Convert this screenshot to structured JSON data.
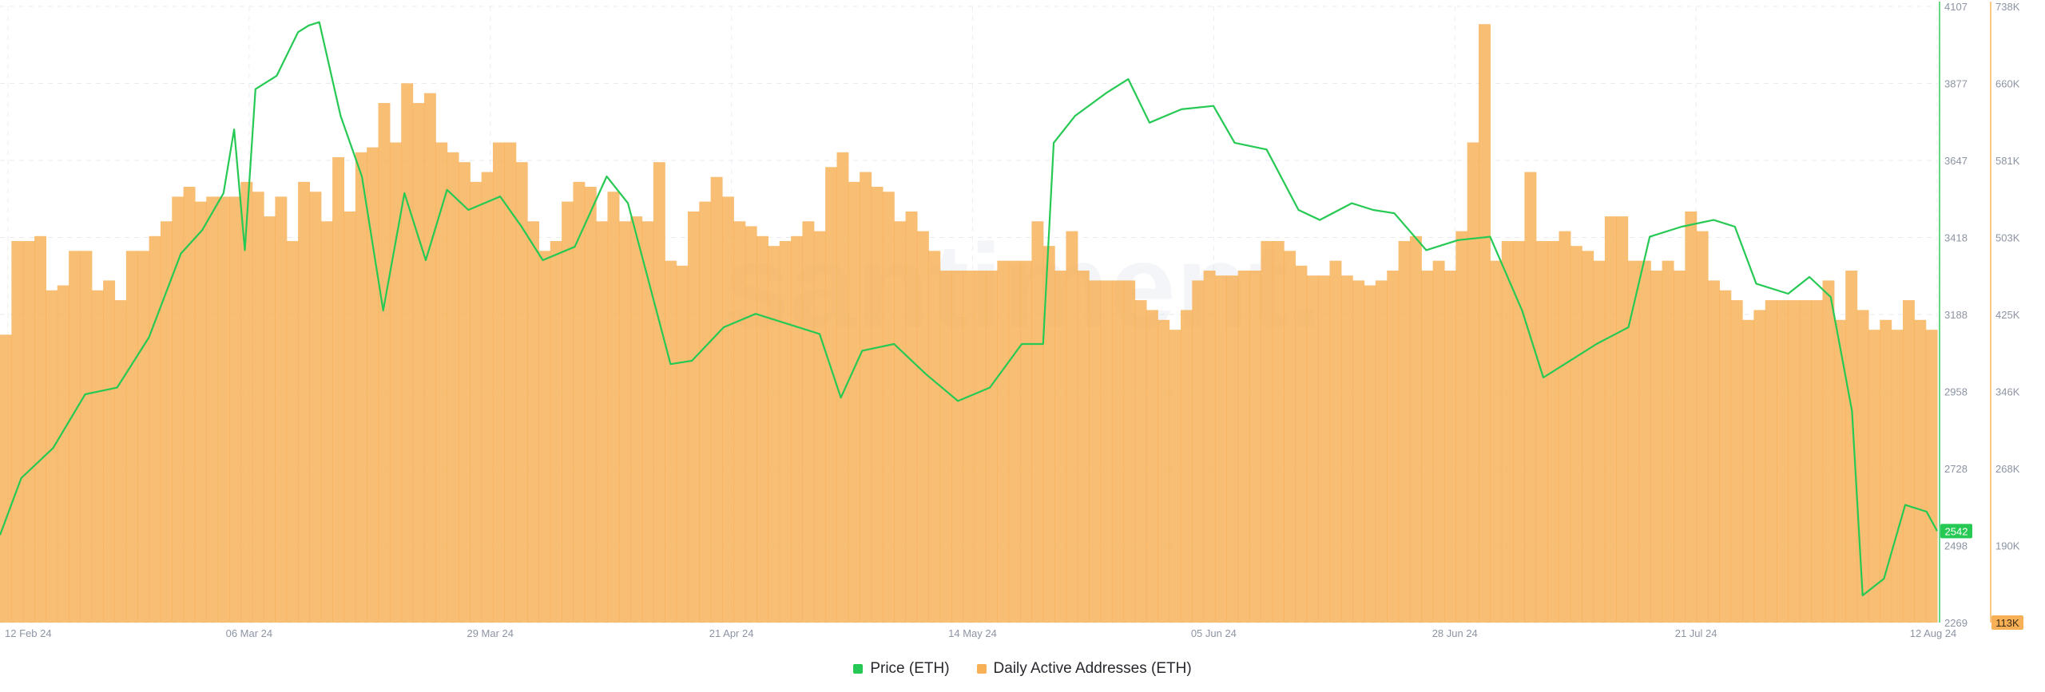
{
  "chart_data": {
    "type": "bar+line",
    "title": "",
    "watermark": "santiment.",
    "x_labels": [
      "12 Feb 24",
      "06 Mar 24",
      "29 Mar 24",
      "21 Apr 24",
      "14 May 24",
      "05 Jun 24",
      "28 Jun 24",
      "21 Jul 24",
      "12 Aug 24"
    ],
    "x_range": [
      "2024-02-12",
      "2024-08-12"
    ],
    "price_axis": {
      "ticks": [
        "4107",
        "3877",
        "3647",
        "3418",
        "3188",
        "2958",
        "2728",
        "2498",
        "2269"
      ],
      "range": [
        2269,
        4107
      ],
      "current_label": "2542",
      "color": "#26c953"
    },
    "addresses_axis": {
      "ticks": [
        "738K",
        "660K",
        "581K",
        "503K",
        "425K",
        "346K",
        "268K",
        "190K"
      ],
      "bottom_label": "113K",
      "range": [
        113000,
        738000
      ],
      "color": "#f7b056"
    },
    "series": [
      {
        "name": "Price (ETH)",
        "type": "line",
        "color": "#26c953",
        "points": [
          [
            "2024-02-12",
            2530
          ],
          [
            "2024-02-14",
            2700
          ],
          [
            "2024-02-17",
            2790
          ],
          [
            "2024-02-20",
            2950
          ],
          [
            "2024-02-23",
            2970
          ],
          [
            "2024-02-26",
            3120
          ],
          [
            "2024-02-29",
            3370
          ],
          [
            "2024-03-02",
            3440
          ],
          [
            "2024-03-04",
            3550
          ],
          [
            "2024-03-05",
            3740
          ],
          [
            "2024-03-06",
            3380
          ],
          [
            "2024-03-07",
            3860
          ],
          [
            "2024-03-09",
            3900
          ],
          [
            "2024-03-11",
            4030
          ],
          [
            "2024-03-12",
            4050
          ],
          [
            "2024-03-13",
            4060
          ],
          [
            "2024-03-15",
            3780
          ],
          [
            "2024-03-17",
            3600
          ],
          [
            "2024-03-19",
            3200
          ],
          [
            "2024-03-21",
            3550
          ],
          [
            "2024-03-23",
            3350
          ],
          [
            "2024-03-25",
            3560
          ],
          [
            "2024-03-27",
            3500
          ],
          [
            "2024-03-30",
            3540
          ],
          [
            "2024-04-01",
            3450
          ],
          [
            "2024-04-03",
            3350
          ],
          [
            "2024-04-06",
            3390
          ],
          [
            "2024-04-09",
            3600
          ],
          [
            "2024-04-11",
            3520
          ],
          [
            "2024-04-13",
            3280
          ],
          [
            "2024-04-15",
            3040
          ],
          [
            "2024-04-17",
            3050
          ],
          [
            "2024-04-20",
            3150
          ],
          [
            "2024-04-23",
            3190
          ],
          [
            "2024-04-26",
            3160
          ],
          [
            "2024-04-29",
            3130
          ],
          [
            "2024-05-01",
            2940
          ],
          [
            "2024-05-03",
            3080
          ],
          [
            "2024-05-06",
            3100
          ],
          [
            "2024-05-09",
            3010
          ],
          [
            "2024-05-12",
            2930
          ],
          [
            "2024-05-15",
            2970
          ],
          [
            "2024-05-18",
            3100
          ],
          [
            "2024-05-20",
            3100
          ],
          [
            "2024-05-21",
            3700
          ],
          [
            "2024-05-23",
            3780
          ],
          [
            "2024-05-26",
            3850
          ],
          [
            "2024-05-28",
            3890
          ],
          [
            "2024-05-30",
            3760
          ],
          [
            "2024-06-02",
            3800
          ],
          [
            "2024-06-05",
            3810
          ],
          [
            "2024-06-07",
            3700
          ],
          [
            "2024-06-10",
            3680
          ],
          [
            "2024-06-13",
            3500
          ],
          [
            "2024-06-15",
            3470
          ],
          [
            "2024-06-18",
            3520
          ],
          [
            "2024-06-20",
            3500
          ],
          [
            "2024-06-22",
            3490
          ],
          [
            "2024-06-25",
            3380
          ],
          [
            "2024-06-28",
            3410
          ],
          [
            "2024-07-01",
            3420
          ],
          [
            "2024-07-04",
            3200
          ],
          [
            "2024-07-06",
            3000
          ],
          [
            "2024-07-08",
            3040
          ],
          [
            "2024-07-11",
            3100
          ],
          [
            "2024-07-14",
            3150
          ],
          [
            "2024-07-16",
            3420
          ],
          [
            "2024-07-19",
            3450
          ],
          [
            "2024-07-22",
            3470
          ],
          [
            "2024-07-24",
            3450
          ],
          [
            "2024-07-26",
            3280
          ],
          [
            "2024-07-29",
            3250
          ],
          [
            "2024-07-31",
            3300
          ],
          [
            "2024-08-02",
            3240
          ],
          [
            "2024-08-04",
            2900
          ],
          [
            "2024-08-05",
            2350
          ],
          [
            "2024-08-07",
            2400
          ],
          [
            "2024-08-09",
            2620
          ],
          [
            "2024-08-11",
            2600
          ],
          [
            "2024-08-12",
            2542
          ]
        ]
      },
      {
        "name": "Daily Active Addresses (ETH)",
        "type": "bar",
        "color": "#f7b056",
        "values": [
          405000,
          500000,
          500000,
          505000,
          450000,
          455000,
          490000,
          490000,
          450000,
          460000,
          440000,
          490000,
          490000,
          505000,
          520000,
          545000,
          555000,
          540000,
          545000,
          545000,
          545000,
          560000,
          550000,
          525000,
          545000,
          500000,
          560000,
          550000,
          520000,
          585000,
          530000,
          590000,
          595000,
          640000,
          600000,
          660000,
          640000,
          650000,
          600000,
          590000,
          580000,
          560000,
          570000,
          600000,
          600000,
          580000,
          520000,
          490000,
          500000,
          540000,
          560000,
          555000,
          520000,
          550000,
          520000,
          525000,
          520000,
          580000,
          480000,
          475000,
          530000,
          540000,
          565000,
          545000,
          520000,
          515000,
          505000,
          495000,
          500000,
          505000,
          520000,
          510000,
          575000,
          590000,
          560000,
          570000,
          555000,
          550000,
          520000,
          530000,
          510000,
          490000,
          470000,
          470000,
          470000,
          470000,
          470000,
          480000,
          480000,
          480000,
          520000,
          495000,
          470000,
          510000,
          470000,
          460000,
          460000,
          460000,
          460000,
          440000,
          430000,
          420000,
          410000,
          430000,
          460000,
          470000,
          465000,
          465000,
          470000,
          470000,
          500000,
          500000,
          490000,
          475000,
          465000,
          465000,
          480000,
          465000,
          460000,
          455000,
          460000,
          470000,
          500000,
          505000,
          470000,
          480000,
          470000,
          510000,
          600000,
          720000,
          480000,
          500000,
          500000,
          570000,
          500000,
          500000,
          510000,
          495000,
          490000,
          480000,
          525000,
          525000,
          480000,
          480000,
          470000,
          480000,
          470000,
          530000,
          510000,
          460000,
          450000,
          440000,
          420000,
          430000,
          440000,
          440000,
          440000,
          440000,
          440000,
          460000,
          420000,
          470000,
          430000,
          410000,
          420000,
          410000,
          440000,
          420000,
          410000
        ]
      }
    ]
  }
}
